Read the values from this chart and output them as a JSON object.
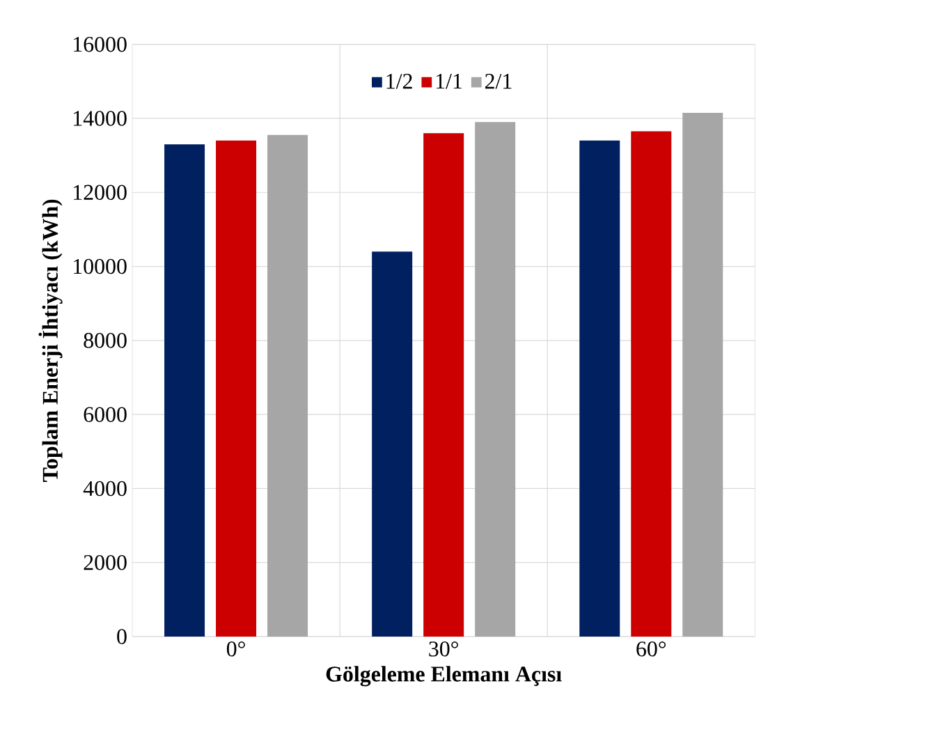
{
  "chart_data": {
    "type": "bar",
    "xlabel": "Gölgeleme Elemanı Açısı",
    "ylabel": "Toplam Enerji İhtiyacı (kWh)",
    "categories": [
      "0°",
      "30°",
      "60°"
    ],
    "series": [
      {
        "name": "1/2",
        "color": "#002060",
        "values": [
          13300,
          10400,
          13400
        ]
      },
      {
        "name": "1/1",
        "color": "#cc0000",
        "values": [
          13400,
          13600,
          13650
        ]
      },
      {
        "name": "2/1",
        "color": "#a6a6a6",
        "values": [
          13550,
          13900,
          14150
        ]
      }
    ],
    "ylim": [
      0,
      16000
    ],
    "yticks": [
      0,
      2000,
      4000,
      6000,
      8000,
      10000,
      12000,
      14000,
      16000
    ],
    "grid": true,
    "legend": "top"
  }
}
